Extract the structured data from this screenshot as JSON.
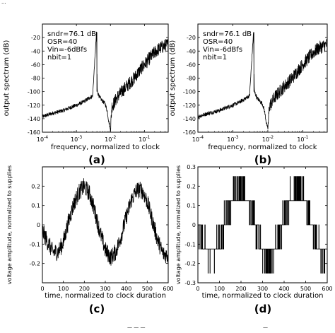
{
  "figure": {
    "top_fragment": "...",
    "bottom_fragment_left": "—  —  —",
    "bottom_fragment_right": "—"
  },
  "chart_data": [
    {
      "id": "a",
      "type": "line",
      "panel_label": "(a)",
      "xlabel": "frequency, normalized to clock",
      "ylabel": "output spectrum (dB)",
      "xscale": "log",
      "xlim": [
        0.0001,
        0.5
      ],
      "ylim": [
        -160,
        0
      ],
      "xticks": [
        {
          "value": 0.0001,
          "base": "10",
          "exp": "-4"
        },
        {
          "value": 0.001,
          "base": "10",
          "exp": "-3"
        },
        {
          "value": 0.01,
          "base": "10",
          "exp": "-2"
        },
        {
          "value": 0.1,
          "base": "10",
          "exp": "-1"
        }
      ],
      "yticks": [
        -160,
        -140,
        -120,
        -100,
        -80,
        -60,
        -40,
        -20
      ],
      "annotations": [
        "sndr=76.1 dB",
        "OSR=40",
        "Vin=-6dBfs",
        "nbit=1"
      ],
      "series": [
        {
          "x": [
            0.0001,
            0.0002,
            0.0004,
            0.0007,
            0.001,
            0.0015,
            0.002,
            0.003,
            0.0039,
            0.0041,
            0.005,
            0.007,
            0.008,
            0.009,
            0.0095,
            0.0098,
            0.0102,
            0.0105,
            0.011,
            0.013,
            0.016,
            0.02,
            0.03,
            0.05,
            0.08,
            0.12,
            0.2,
            0.3,
            0.5
          ],
          "y": [
            -137,
            -132,
            -128,
            -123,
            -120,
            -116,
            -112,
            -106,
            -12,
            -100,
            -110,
            -118,
            -128,
            -145,
            -150,
            -155,
            -150,
            -140,
            -122,
            -116,
            -108,
            -102,
            -92,
            -80,
            -66,
            -55,
            -42,
            -35,
            -30
          ]
        }
      ],
      "grid": false
    },
    {
      "id": "b",
      "type": "line",
      "panel_label": "(b)",
      "xlabel": "frequency, normalized to clock",
      "ylabel": "output spectrum (dB)",
      "xscale": "log",
      "xlim": [
        0.0001,
        0.5
      ],
      "ylim": [
        -160,
        0
      ],
      "xticks": [
        {
          "value": 0.0001,
          "base": "10",
          "exp": "-4"
        },
        {
          "value": 0.001,
          "base": "10",
          "exp": "-3"
        },
        {
          "value": 0.01,
          "base": "10",
          "exp": "-2"
        },
        {
          "value": 0.1,
          "base": "10",
          "exp": "-1"
        }
      ],
      "yticks": [
        -160,
        -140,
        -120,
        -100,
        -80,
        -60,
        -40,
        -20
      ],
      "annotations": [
        "sndr=76.1 dB",
        "OSR=40",
        "Vin=-6dBfs",
        "nbit=1"
      ],
      "series": [
        {
          "x": [
            0.0001,
            0.0002,
            0.0004,
            0.0007,
            0.001,
            0.0015,
            0.002,
            0.003,
            0.0039,
            0.0041,
            0.005,
            0.007,
            0.008,
            0.009,
            0.0095,
            0.0098,
            0.0102,
            0.0105,
            0.011,
            0.013,
            0.016,
            0.02,
            0.03,
            0.05,
            0.08,
            0.12,
            0.2,
            0.3,
            0.5
          ],
          "y": [
            -137,
            -132,
            -128,
            -123,
            -120,
            -116,
            -112,
            -106,
            -12,
            -100,
            -110,
            -118,
            -128,
            -145,
            -150,
            -155,
            -150,
            -140,
            -122,
            -116,
            -108,
            -102,
            -92,
            -80,
            -66,
            -55,
            -42,
            -35,
            -30
          ]
        }
      ],
      "grid": false
    },
    {
      "id": "c",
      "type": "line",
      "panel_label": "(c)",
      "xlabel": "time, normalized to clock duration",
      "ylabel": "voltage amplitude, normalized to supplies",
      "xlim": [
        0,
        600
      ],
      "ylim": [
        -0.3,
        0.3
      ],
      "xticks": [
        0,
        100,
        200,
        300,
        400,
        500,
        600
      ],
      "yticks": [
        -0.2,
        -0.1,
        0,
        0.1,
        0.2
      ],
      "series": [
        {
          "x": [
            0,
            25,
            50,
            75,
            100,
            125,
            150,
            175,
            200,
            225,
            250,
            275,
            300,
            325,
            350,
            375,
            400,
            425,
            450,
            475,
            500,
            525,
            550,
            575,
            600
          ],
          "y": [
            -0.03,
            -0.09,
            -0.14,
            -0.14,
            -0.09,
            0.02,
            0.11,
            0.17,
            0.2,
            0.16,
            0.07,
            -0.04,
            -0.13,
            -0.17,
            -0.14,
            -0.06,
            0.04,
            0.13,
            0.18,
            0.18,
            0.12,
            0.02,
            -0.08,
            -0.15,
            -0.16
          ]
        }
      ],
      "grid": false
    },
    {
      "id": "d",
      "type": "line",
      "panel_label": "(d)",
      "xlabel": "time, normalized to clock duration",
      "ylabel": "voltage amplitude, normalized to supplies",
      "xlim": [
        0,
        600
      ],
      "ylim": [
        -0.3,
        0.3
      ],
      "xticks": [
        0,
        100,
        200,
        300,
        400,
        500,
        600
      ],
      "yticks": [
        -0.3,
        -0.2,
        -0.1,
        0,
        0.1,
        0.2,
        0.3
      ],
      "levels": [
        -0.25,
        -0.125,
        0,
        0.125,
        0.25
      ],
      "series": [
        {
          "x": [
            0,
            25,
            50,
            75,
            100,
            125,
            150,
            175,
            200,
            225,
            250,
            275,
            300,
            325,
            350,
            375,
            400,
            425,
            450,
            475,
            500,
            525,
            550,
            575,
            600
          ],
          "y": [
            -0.03,
            -0.09,
            -0.14,
            -0.14,
            -0.09,
            0.02,
            0.11,
            0.17,
            0.2,
            0.16,
            0.07,
            -0.04,
            -0.13,
            -0.17,
            -0.14,
            -0.06,
            0.04,
            0.13,
            0.18,
            0.18,
            0.12,
            0.02,
            -0.08,
            -0.15,
            -0.16
          ]
        }
      ],
      "grid": false
    }
  ]
}
